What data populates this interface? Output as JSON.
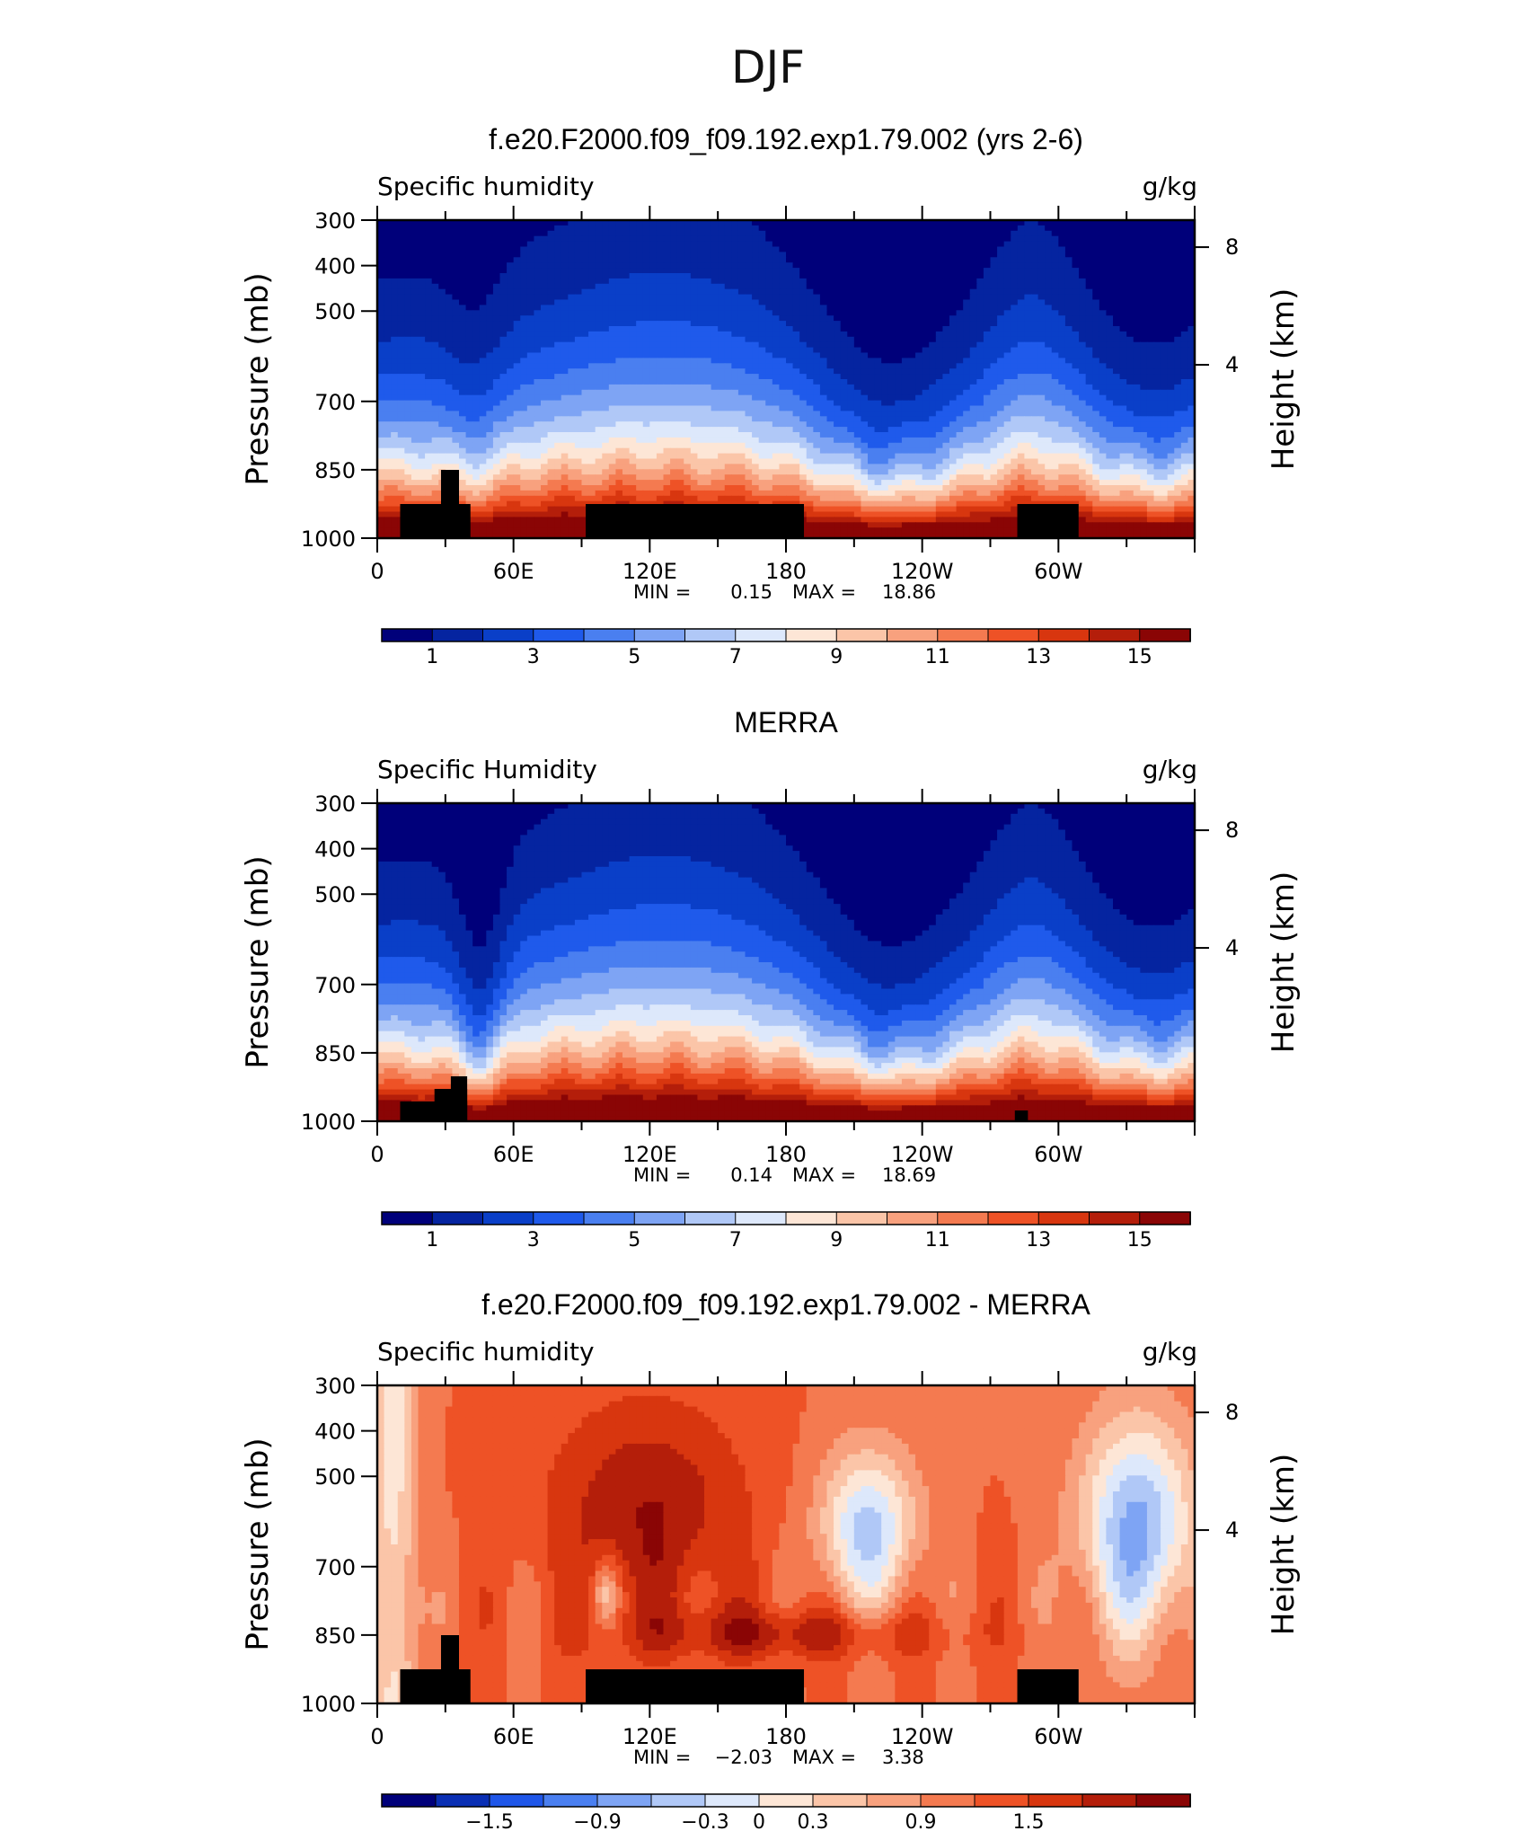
{
  "figure_title": "DJF",
  "panel_common": {
    "ylabel": "Pressure (mb)",
    "y2label": "Height (km)",
    "min_label": "MIN =",
    "max_label": "MAX ="
  },
  "chart_data": [
    {
      "type": "heatmap",
      "title": "f.e20.F2000.f09_f09.192.exp1.79.002 (yrs 2-6)",
      "left_label": "Specific humidity",
      "units": "g/kg",
      "x_ticks": [
        "0",
        "60E",
        "120E",
        "180",
        "120W",
        "60W"
      ],
      "x_range": [
        0,
        360
      ],
      "y_ticks": [
        "300",
        "400",
        "500",
        "700",
        "850",
        "1000"
      ],
      "y_range_mb": [
        1000,
        300
      ],
      "y2_ticks": [
        "8",
        "4"
      ],
      "min": "0.15",
      "max": "18.86",
      "colorbar_levels": [
        0,
        1,
        2,
        3,
        4,
        5,
        6,
        7,
        8,
        9,
        10,
        11,
        12,
        13,
        14,
        15,
        16
      ],
      "colorbar_labels": [
        "1",
        "3",
        "5",
        "7",
        "9",
        "11",
        "13",
        "15"
      ],
      "kind": "model"
    },
    {
      "type": "heatmap",
      "title": "MERRA",
      "left_label": "Specific Humidity",
      "units": "g/kg",
      "x_ticks": [
        "0",
        "60E",
        "120E",
        "180",
        "120W",
        "60W"
      ],
      "x_range": [
        0,
        360
      ],
      "y_ticks": [
        "300",
        "400",
        "500",
        "700",
        "850",
        "1000"
      ],
      "y_range_mb": [
        1000,
        300
      ],
      "y2_ticks": [
        "8",
        "4"
      ],
      "min": "0.14",
      "max": "18.69",
      "colorbar_levels": [
        0,
        1,
        2,
        3,
        4,
        5,
        6,
        7,
        8,
        9,
        10,
        11,
        12,
        13,
        14,
        15,
        16
      ],
      "colorbar_labels": [
        "1",
        "3",
        "5",
        "7",
        "9",
        "11",
        "13",
        "15"
      ],
      "kind": "obs"
    },
    {
      "type": "heatmap",
      "title": "f.e20.F2000.f09_f09.192.exp1.79.002 - MERRA",
      "left_label": "Specific humidity",
      "units": "g/kg",
      "x_ticks": [
        "0",
        "60E",
        "120E",
        "180",
        "120W",
        "60W"
      ],
      "x_range": [
        0,
        360
      ],
      "y_ticks": [
        "300",
        "400",
        "500",
        "700",
        "850",
        "1000"
      ],
      "y_range_mb": [
        1000,
        300
      ],
      "y2_ticks": [
        "8",
        "4"
      ],
      "min": "−2.03",
      "max": "3.38",
      "colorbar_levels": [
        -2.1,
        -1.8,
        -1.5,
        -1.2,
        -0.9,
        -0.6,
        -0.3,
        0,
        0.3,
        0.6,
        0.9,
        1.2,
        1.5,
        1.8,
        2.1
      ],
      "colorbar_labels": [
        "−1.5",
        "−0.9",
        "−0.3",
        "0",
        "0.3",
        "0.9",
        "1.5"
      ],
      "kind": "diff"
    }
  ],
  "colormap": [
    "#00007a",
    "#0524a0",
    "#0a3fc8",
    "#1f5aeb",
    "#4a7ff0",
    "#7ea4f4",
    "#b0c8f7",
    "#dde8fb",
    "#fde6d6",
    "#fbc5a8",
    "#f8a17e",
    "#f47a50",
    "#ee5226",
    "#d8360f",
    "#b41e0a",
    "#8a0505"
  ],
  "colormap_diff": [
    "#00007a",
    "#0a2fb4",
    "#1f56e8",
    "#4a7ff0",
    "#7ea4f4",
    "#b0c8f7",
    "#dde8fb",
    "#fde6d6",
    "#fbc5a8",
    "#f8a17e",
    "#f47a50",
    "#ee5226",
    "#d8360f",
    "#b41e0a",
    "#8a0505"
  ]
}
